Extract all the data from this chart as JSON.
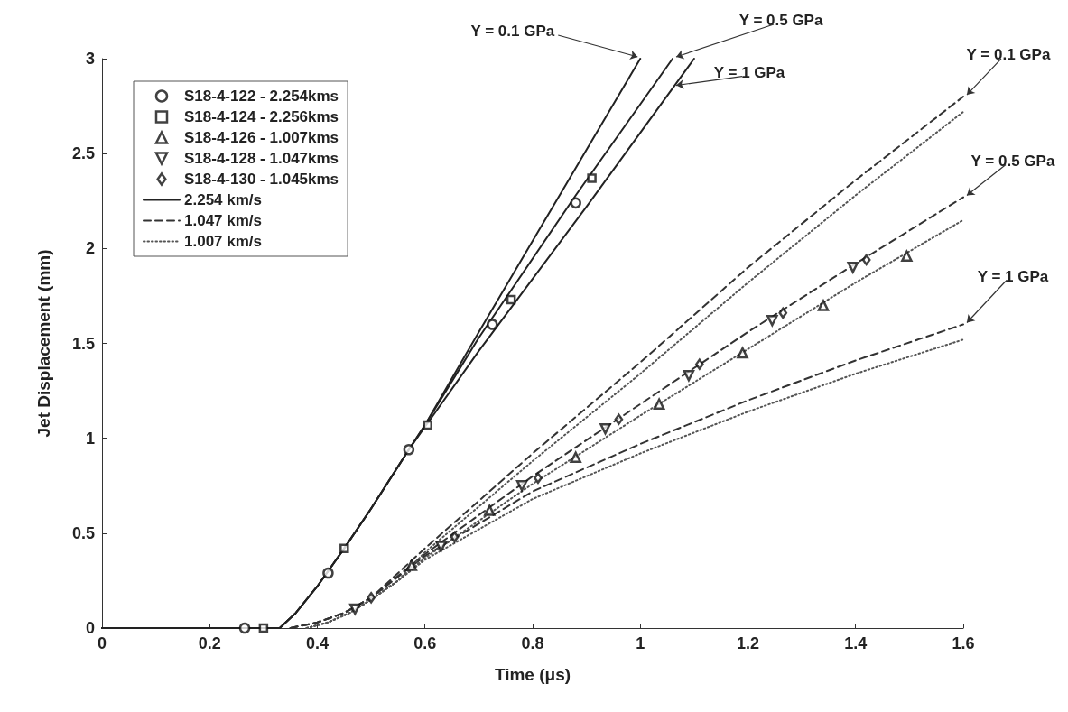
{
  "chart_data": {
    "type": "line",
    "xlabel": "Time (μs)",
    "ylabel": "Jet Displacement (mm)",
    "xlim": [
      0,
      1.6
    ],
    "xticks": [
      0,
      0.2,
      0.4,
      0.6,
      0.8,
      1,
      1.2,
      1.4,
      1.6
    ],
    "ylim": [
      0,
      3
    ],
    "yticks": [
      0,
      0.5,
      1,
      1.5,
      2,
      2.5,
      3
    ],
    "grid": false,
    "legend": "top left",
    "series": [
      {
        "name": "S18-4-122 - 2.254kms",
        "type": "scatter",
        "marker": "circle",
        "color": "#111111",
        "x": [
          0.265,
          0.42,
          0.57,
          0.725,
          0.88
        ],
        "values": [
          0,
          0.29,
          0.94,
          1.6,
          2.24
        ]
      },
      {
        "name": "S18-4-124 - 2.256kms",
        "type": "scatter",
        "marker": "square",
        "color": "#111111",
        "x": [
          0.3,
          0.45,
          0.605,
          0.76,
          0.91
        ],
        "values": [
          0,
          0.42,
          1.07,
          1.73,
          2.37
        ]
      },
      {
        "name": "S18-4-126 - 1.007kms",
        "type": "scatter",
        "marker": "triangle",
        "color": "#111111",
        "x": [
          0.575,
          0.72,
          0.88,
          1.035,
          1.19,
          1.34,
          1.495
        ],
        "values": [
          0.33,
          0.62,
          0.9,
          1.18,
          1.45,
          1.7,
          1.96
        ]
      },
      {
        "name": "S18-4-128 - 1.047kms",
        "type": "scatter",
        "marker": "triangle-down",
        "color": "#111111",
        "x": [
          0.47,
          0.63,
          0.78,
          0.935,
          1.09,
          1.245,
          1.395
        ],
        "values": [
          0.1,
          0.43,
          0.75,
          1.05,
          1.33,
          1.62,
          1.9
        ]
      },
      {
        "name": "S18-4-130 - 1.045kms",
        "type": "scatter",
        "marker": "diamond",
        "color": "#111111",
        "x": [
          0.5,
          0.655,
          0.81,
          0.96,
          1.11,
          1.265,
          1.42
        ],
        "values": [
          0.16,
          0.48,
          0.79,
          1.1,
          1.39,
          1.66,
          1.94
        ]
      },
      {
        "name": "2.254 km/s",
        "type": "line",
        "line_style": "solid",
        "color": "#222222",
        "x": [
          0,
          0.33,
          0.36,
          0.4,
          0.45,
          0.5,
          0.57,
          0.6,
          0.7,
          0.85,
          1.0
        ],
        "values": [
          0,
          0,
          0.08,
          0.22,
          0.42,
          0.63,
          0.94,
          1.07,
          1.56,
          2.28,
          3
        ]
      },
      {
        "type": "line",
        "line_style": "solid",
        "color": "#222222",
        "x": [
          0,
          0.33,
          0.36,
          0.4,
          0.45,
          0.5,
          0.57,
          0.6,
          0.7,
          0.88,
          1.06
        ],
        "values": [
          0,
          0,
          0.08,
          0.22,
          0.42,
          0.63,
          0.94,
          1.07,
          1.53,
          2.28,
          3
        ]
      },
      {
        "type": "line",
        "line_style": "solid",
        "color": "#222222",
        "x": [
          0,
          0.33,
          0.36,
          0.4,
          0.45,
          0.5,
          0.57,
          0.6,
          0.7,
          0.9,
          1.1
        ],
        "values": [
          0,
          0,
          0.08,
          0.22,
          0.42,
          0.63,
          0.94,
          1.06,
          1.46,
          2.22,
          3
        ]
      },
      {
        "name": "1.047 km/s",
        "type": "line",
        "line_style": "dashed",
        "color": "#333333",
        "x": [
          0.35,
          0.4,
          0.45,
          0.5,
          0.6,
          0.8,
          1.0,
          1.2,
          1.4,
          1.6
        ],
        "values": [
          0,
          0.03,
          0.08,
          0.16,
          0.42,
          0.92,
          1.4,
          1.9,
          2.36,
          2.8
        ]
      },
      {
        "type": "line",
        "line_style": "dashed",
        "color": "#333333",
        "x": [
          0.35,
          0.4,
          0.45,
          0.5,
          0.6,
          0.8,
          1.0,
          1.2,
          1.4,
          1.6
        ],
        "values": [
          0,
          0.03,
          0.08,
          0.16,
          0.39,
          0.8,
          1.18,
          1.56,
          1.92,
          2.27
        ]
      },
      {
        "type": "line",
        "line_style": "dashed",
        "color": "#333333",
        "x": [
          0.35,
          0.4,
          0.45,
          0.5,
          0.6,
          0.8,
          1.0,
          1.2,
          1.4,
          1.6
        ],
        "values": [
          0,
          0.03,
          0.08,
          0.16,
          0.38,
          0.72,
          0.97,
          1.2,
          1.41,
          1.6
        ]
      },
      {
        "name": "1.007 km/s",
        "type": "line",
        "line_style": "dotted",
        "color": "#555555",
        "x": [
          0.38,
          0.42,
          0.46,
          0.5,
          0.55,
          0.6,
          0.8,
          1.0,
          1.2,
          1.4,
          1.6
        ],
        "values": [
          0,
          0.03,
          0.08,
          0.15,
          0.25,
          0.4,
          0.88,
          1.34,
          1.82,
          2.28,
          2.72
        ]
      },
      {
        "type": "line",
        "line_style": "dotted",
        "color": "#555555",
        "x": [
          0.38,
          0.42,
          0.46,
          0.5,
          0.55,
          0.6,
          0.8,
          1.0,
          1.2,
          1.4,
          1.6
        ],
        "values": [
          0,
          0.03,
          0.08,
          0.15,
          0.25,
          0.37,
          0.76,
          1.12,
          1.47,
          1.82,
          2.15
        ]
      },
      {
        "type": "line",
        "line_style": "dotted",
        "color": "#555555",
        "x": [
          0.38,
          0.42,
          0.46,
          0.5,
          0.55,
          0.6,
          0.8,
          1.0,
          1.2,
          1.4,
          1.6
        ],
        "values": [
          0,
          0.03,
          0.08,
          0.15,
          0.25,
          0.36,
          0.68,
          0.92,
          1.14,
          1.34,
          1.52
        ]
      }
    ],
    "annotations": [
      {
        "text": "Y = 0.1 GPa",
        "x": 1.0,
        "y": 3
      },
      {
        "text": "Y = 0.5 GPa",
        "x": 1.06,
        "y": 3
      },
      {
        "text": "Y = 1 GPa",
        "x": 1.06,
        "y": 2.85
      },
      {
        "text": "Y = 0.1 GPa",
        "x": 1.6,
        "y": 2.8
      },
      {
        "text": "Y = 0.5 GPa",
        "x": 1.6,
        "y": 2.27
      },
      {
        "text": "Y = 1 GPa",
        "x": 1.6,
        "y": 1.6
      }
    ]
  }
}
